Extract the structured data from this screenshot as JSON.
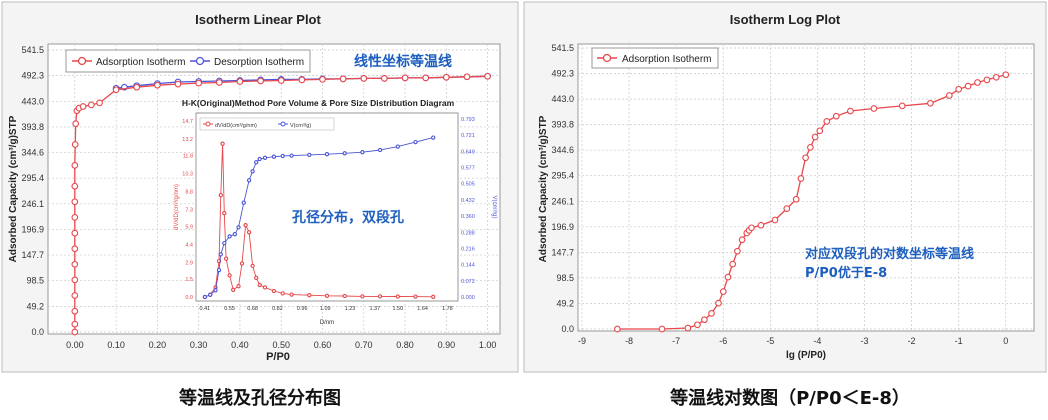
{
  "colors": {
    "adsorption": "#e8474b",
    "desorption": "#4b55d6",
    "annotation": "#1d5fbf",
    "grid": "#c8c8c8"
  },
  "captions": {
    "left": "等温线及孔径分布图",
    "right": "等温线对数图（P/P0＜E-8）"
  },
  "chart_data": [
    {
      "type": "line",
      "title": "Isotherm Linear Plot",
      "xlabel": "P/P0",
      "ylabel": "Adsorbed Capacity (cm³/g)STP",
      "xlim": [
        0.0,
        1.0
      ],
      "ylim": [
        0.0,
        541.5
      ],
      "x_ticks": [
        "0.00",
        "0.10",
        "0.20",
        "0.30",
        "0.40",
        "0.50",
        "0.60",
        "0.70",
        "0.80",
        "0.90",
        "1.00"
      ],
      "y_ticks": [
        "0.0",
        "49.2",
        "98.5",
        "147.7",
        "196.9",
        "246.1",
        "295.4",
        "344.6",
        "393.8",
        "443.0",
        "492.3",
        "541.5"
      ],
      "legend": [
        "Adsorption Isotherm",
        "Desorption Isotherm"
      ],
      "legend_position": "top-left",
      "grid": true,
      "annotation": "线性坐标等温线",
      "series": [
        {
          "name": "Adsorption Isotherm",
          "x": [
            0.0,
            0.0,
            0.0,
            0.0,
            0.0,
            0.0,
            0.0,
            0.0,
            0.0,
            0.0,
            0.0,
            0.0,
            0.001,
            0.002,
            0.005,
            0.01,
            0.02,
            0.04,
            0.06,
            0.1,
            0.15,
            0.2,
            0.25,
            0.3,
            0.35,
            0.4,
            0.45,
            0.5,
            0.55,
            0.6,
            0.65,
            0.7,
            0.75,
            0.8,
            0.85,
            0.9,
            0.95,
            1.0
          ],
          "y": [
            0,
            15,
            40,
            70,
            100,
            130,
            160,
            190,
            220,
            250,
            280,
            320,
            360,
            400,
            425,
            430,
            433,
            436,
            440,
            465,
            470,
            474,
            476,
            478,
            479,
            481,
            482,
            483,
            484,
            485,
            486,
            487,
            487,
            488,
            488,
            489,
            490,
            491
          ]
        },
        {
          "name": "Desorption Isotherm",
          "x": [
            1.0,
            0.95,
            0.9,
            0.85,
            0.8,
            0.75,
            0.7,
            0.65,
            0.6,
            0.55,
            0.5,
            0.45,
            0.4,
            0.35,
            0.3,
            0.25,
            0.2,
            0.15,
            0.12,
            0.1
          ],
          "y": [
            491,
            490,
            489,
            488,
            488,
            487,
            487,
            486,
            486,
            485,
            485,
            484,
            483,
            482,
            481,
            480,
            477,
            473,
            470,
            468
          ]
        }
      ],
      "inset": {
        "title": "H-K(Original)Method Pore Volume & Pore Size Distribution Diagram",
        "xlabel": "D/nm",
        "ylabel_left": "dV/dD(cm³/g/nm)",
        "ylabel_right": "V(cm³/g)",
        "x_ticks": [
          "0.41",
          "0.55",
          "0.68",
          "0.82",
          "0.96",
          "1.09",
          "1.23",
          "1.37",
          "1.50",
          "1.64",
          "1.78"
        ],
        "y_ticks_left": [
          "0.0",
          "1.5",
          "2.9",
          "4.4",
          "5.9",
          "7.3",
          "8.8",
          "10.3",
          "11.8",
          "13.2",
          "14.7"
        ],
        "y_ticks_right": [
          "0.000",
          "0.072",
          "0.144",
          "0.216",
          "0.288",
          "0.360",
          "0.432",
          "0.505",
          "0.577",
          "0.649",
          "0.721",
          "0.793"
        ],
        "legend": [
          "dV/dD(cm³/g/nm)",
          "V(cm³/g)"
        ],
        "annotation": "孔径分布，双段孔",
        "series": [
          {
            "name": "dV/dD(cm³/g/nm)",
            "axis": "left",
            "x": [
              0.41,
              0.44,
              0.47,
              0.49,
              0.5,
              0.51,
              0.52,
              0.53,
              0.55,
              0.57,
              0.6,
              0.62,
              0.64,
              0.66,
              0.68,
              0.7,
              0.72,
              0.75,
              0.8,
              0.85,
              0.9,
              1.0,
              1.1,
              1.2,
              1.3,
              1.4,
              1.5,
              1.6,
              1.7
            ],
            "y": [
              0,
              0.2,
              0.8,
              3.0,
              8.5,
              12.8,
              7.0,
              3.2,
              1.8,
              0.6,
              0.9,
              2.8,
              6.0,
              5.4,
              2.6,
              1.6,
              1.0,
              0.8,
              0.5,
              0.3,
              0.2,
              0.15,
              0.1,
              0.08,
              0.05,
              0.05,
              0.04,
              0.03,
              0.02
            ]
          },
          {
            "name": "V(cm³/g)",
            "axis": "right",
            "x": [
              0.41,
              0.44,
              0.47,
              0.49,
              0.5,
              0.52,
              0.55,
              0.58,
              0.6,
              0.63,
              0.66,
              0.68,
              0.7,
              0.72,
              0.75,
              0.8,
              0.85,
              0.9,
              1.0,
              1.1,
              1.2,
              1.3,
              1.4,
              1.5,
              1.6,
              1.7
            ],
            "y": [
              0.0,
              0.01,
              0.03,
              0.12,
              0.19,
              0.24,
              0.27,
              0.28,
              0.31,
              0.42,
              0.52,
              0.56,
              0.6,
              0.615,
              0.62,
              0.625,
              0.628,
              0.63,
              0.633,
              0.636,
              0.64,
              0.645,
              0.655,
              0.67,
              0.69,
              0.71
            ]
          }
        ]
      }
    },
    {
      "type": "line",
      "title": "Isotherm Log Plot",
      "xlabel": "lg (P/P0)",
      "ylabel": "Adsorbed Capacity (cm³/g)STP",
      "xlim": [
        -9,
        0
      ],
      "ylim": [
        0.0,
        541.5
      ],
      "x_ticks": [
        "-9",
        "-8",
        "-7",
        "-6",
        "-5",
        "-4",
        "-3",
        "-2",
        "-1",
        "0"
      ],
      "y_ticks": [
        "0.0",
        "49.2",
        "98.5",
        "147.7",
        "196.9",
        "246.1",
        "295.4",
        "344.6",
        "393.8",
        "443.0",
        "492.3",
        "541.5"
      ],
      "legend": [
        "Adsorption Isotherm"
      ],
      "legend_position": "top-left",
      "grid": true,
      "annotation": [
        "对应双段孔的对数坐标等温线",
        "P/P0优于E-8"
      ],
      "series": [
        {
          "name": "Adsorption Isotherm",
          "x": [
            -8.25,
            -7.3,
            -6.75,
            -6.55,
            -6.4,
            -6.25,
            -6.1,
            -6.0,
            -5.9,
            -5.8,
            -5.7,
            -5.6,
            -5.5,
            -5.45,
            -5.4,
            -5.2,
            -4.9,
            -4.65,
            -4.45,
            -4.35,
            -4.25,
            -4.15,
            -4.05,
            -3.95,
            -3.8,
            -3.6,
            -3.3,
            -2.8,
            -2.2,
            -1.6,
            -1.2,
            -1.0,
            -0.8,
            -0.6,
            -0.4,
            -0.2,
            0.0
          ],
          "y": [
            0,
            0,
            2,
            8,
            18,
            30,
            50,
            72,
            100,
            125,
            150,
            172,
            185,
            190,
            195,
            200,
            210,
            232,
            250,
            290,
            330,
            350,
            370,
            382,
            400,
            410,
            420,
            425,
            430,
            435,
            450,
            462,
            468,
            475,
            480,
            485,
            490
          ]
        }
      ]
    }
  ]
}
